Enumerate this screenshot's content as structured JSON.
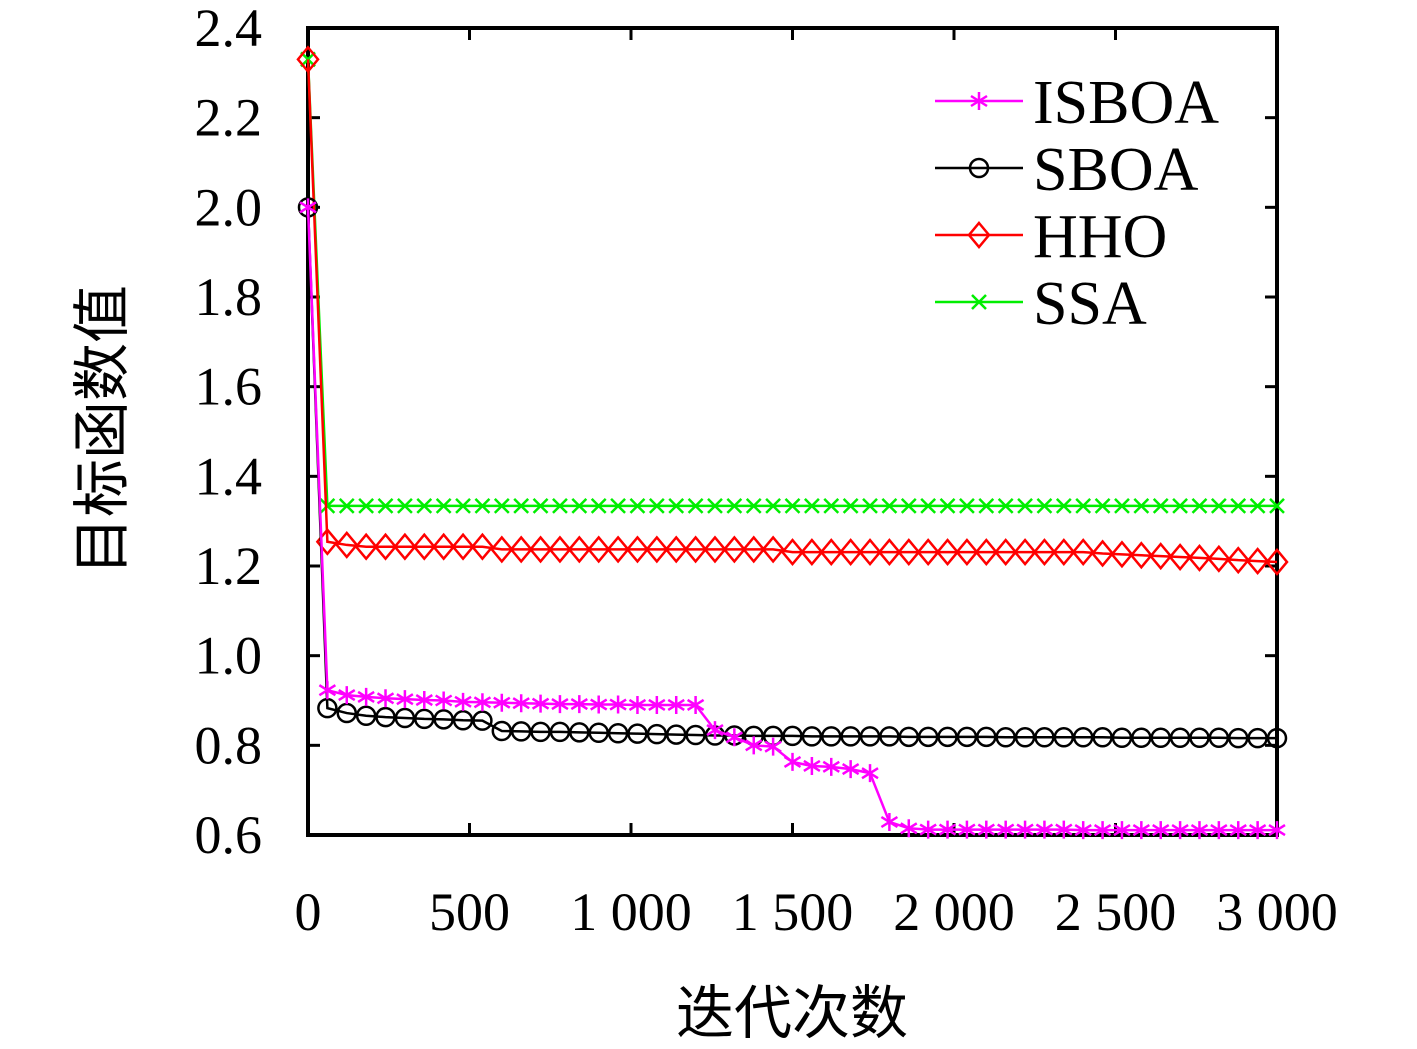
{
  "chart_data": {
    "type": "line",
    "title": "",
    "xlabel": "迭代次数",
    "ylabel": "目标函数值",
    "xlim": [
      0,
      3000
    ],
    "ylim": [
      0.6,
      2.4
    ],
    "xticks": [
      0,
      500,
      1000,
      1500,
      2000,
      2500,
      3000
    ],
    "xtick_labels": [
      "0",
      "500",
      "1 000",
      "1 500",
      "2 000",
      "2 500",
      "3 000"
    ],
    "yticks": [
      0.6,
      0.8,
      1.0,
      1.2,
      1.4,
      1.6,
      1.8,
      2.0,
      2.2,
      2.4
    ],
    "ytick_labels": [
      "0.6",
      "0.8",
      "1.0",
      "1.2",
      "1.4",
      "1.6",
      "1.8",
      "2.0",
      "2.2",
      "2.4"
    ],
    "grid": false,
    "legend_position": "top-right",
    "x_step": 60,
    "series": [
      {
        "name": "ISBOA",
        "color": "#ff00ff",
        "marker": "star",
        "values": [
          2.0,
          0.923,
          0.912,
          0.908,
          0.905,
          0.903,
          0.901,
          0.9,
          0.897,
          0.896,
          0.895,
          0.894,
          0.893,
          0.892,
          0.892,
          0.891,
          0.891,
          0.89,
          0.89,
          0.89,
          0.89,
          0.834,
          0.818,
          0.8,
          0.797,
          0.763,
          0.754,
          0.752,
          0.747,
          0.738,
          0.629,
          0.615,
          0.612,
          0.612,
          0.612,
          0.612,
          0.612,
          0.612,
          0.612,
          0.612,
          0.611,
          0.611,
          0.611,
          0.611,
          0.611,
          0.611,
          0.611,
          0.611,
          0.611,
          0.611,
          0.611
        ]
      },
      {
        "name": "SBOA",
        "color": "#000000",
        "marker": "circle",
        "values": [
          2.0,
          0.883,
          0.872,
          0.866,
          0.863,
          0.861,
          0.859,
          0.858,
          0.856,
          0.855,
          0.832,
          0.831,
          0.83,
          0.83,
          0.829,
          0.828,
          0.827,
          0.826,
          0.825,
          0.824,
          0.823,
          0.822,
          0.822,
          0.821,
          0.821,
          0.821,
          0.82,
          0.82,
          0.82,
          0.82,
          0.82,
          0.819,
          0.819,
          0.819,
          0.819,
          0.819,
          0.818,
          0.818,
          0.818,
          0.818,
          0.818,
          0.818,
          0.817,
          0.817,
          0.817,
          0.817,
          0.817,
          0.817,
          0.816,
          0.816,
          0.816
        ]
      },
      {
        "name": "HHO",
        "color": "#ff0000",
        "marker": "diamond",
        "values": [
          2.33,
          1.254,
          1.247,
          1.243,
          1.243,
          1.243,
          1.243,
          1.243,
          1.243,
          1.243,
          1.237,
          1.237,
          1.237,
          1.237,
          1.237,
          1.237,
          1.237,
          1.237,
          1.237,
          1.237,
          1.237,
          1.237,
          1.237,
          1.237,
          1.237,
          1.231,
          1.231,
          1.231,
          1.231,
          1.231,
          1.231,
          1.231,
          1.231,
          1.231,
          1.231,
          1.231,
          1.231,
          1.231,
          1.231,
          1.231,
          1.231,
          1.228,
          1.226,
          1.224,
          1.222,
          1.22,
          1.218,
          1.216,
          1.213,
          1.211,
          1.209
        ]
      },
      {
        "name": "SSA",
        "color": "#00ee00",
        "marker": "cross",
        "values": [
          2.33,
          1.334,
          1.334,
          1.334,
          1.334,
          1.334,
          1.334,
          1.334,
          1.334,
          1.334,
          1.334,
          1.334,
          1.334,
          1.334,
          1.334,
          1.334,
          1.334,
          1.334,
          1.334,
          1.334,
          1.334,
          1.334,
          1.334,
          1.334,
          1.334,
          1.334,
          1.334,
          1.334,
          1.334,
          1.334,
          1.334,
          1.334,
          1.334,
          1.334,
          1.334,
          1.334,
          1.334,
          1.334,
          1.334,
          1.334,
          1.334,
          1.334,
          1.334,
          1.334,
          1.334,
          1.334,
          1.334,
          1.334,
          1.334,
          1.334,
          1.334
        ]
      }
    ]
  }
}
